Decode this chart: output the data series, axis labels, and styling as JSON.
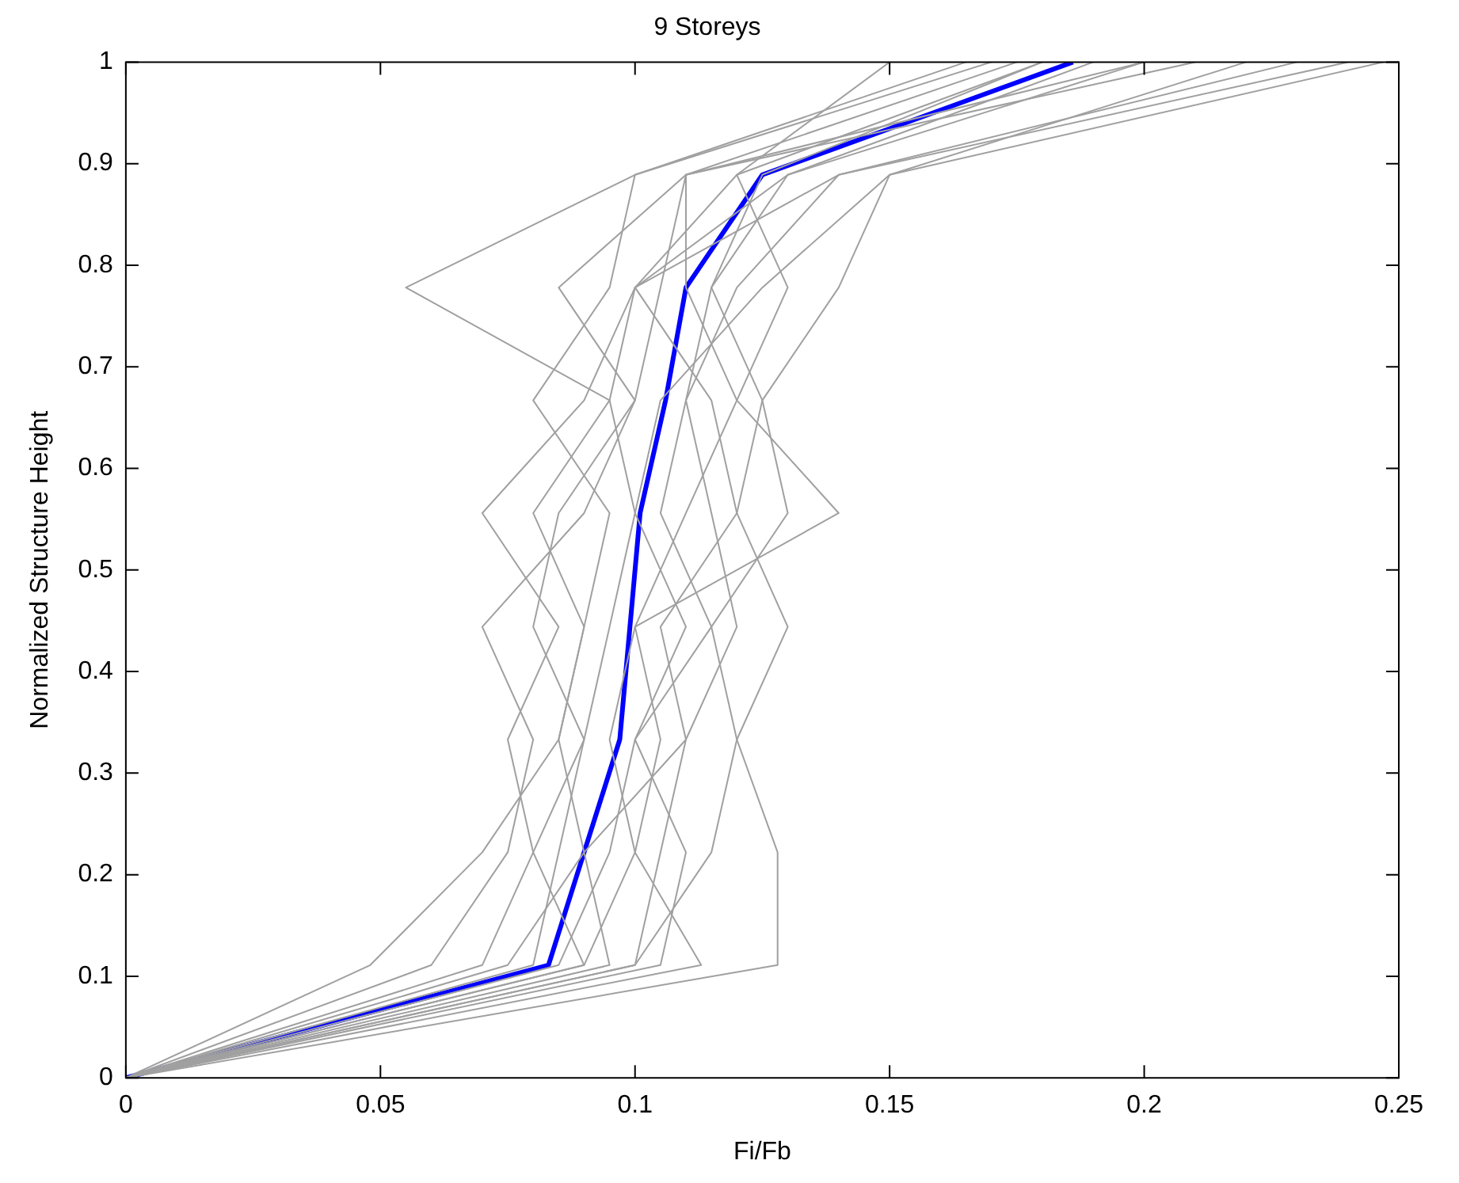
{
  "chart_data": {
    "type": "line",
    "title": "9 Storeys",
    "xlabel": "Fi/Fb",
    "ylabel": "Normalized Structure Height",
    "xlim": [
      0,
      0.25
    ],
    "xticks": [
      0,
      0.05,
      0.1,
      0.15,
      0.2,
      0.25
    ],
    "ylim": [
      0,
      1
    ],
    "yticks": [
      0,
      0.1,
      0.2,
      0.3,
      0.4,
      0.5,
      0.6,
      0.7,
      0.8,
      0.9,
      1
    ],
    "grid": false,
    "legend": false,
    "marker": "none",
    "line_style": "solid",
    "series": [
      {
        "color": "#a0a0a0",
        "x": [
          0,
          0.048,
          0.07,
          0.085,
          0.09,
          0.08,
          0.095,
          0.055,
          0.1,
          0.17
        ],
        "values": [
          0,
          0.111,
          0.222,
          0.333,
          0.444,
          0.556,
          0.667,
          0.778,
          0.889,
          1
        ]
      },
      {
        "color": "#a0a0a0",
        "x": [
          0,
          0.128,
          0.128,
          0.12,
          0.115,
          0.13,
          0.125,
          0.14,
          0.15,
          0.247
        ],
        "values": [
          0,
          0.111,
          0.222,
          0.333,
          0.444,
          0.556,
          0.667,
          0.778,
          0.889,
          1
        ]
      },
      {
        "color": "#a0a0a0",
        "x": [
          0,
          0.06,
          0.075,
          0.08,
          0.07,
          0.09,
          0.1,
          0.085,
          0.11,
          0.2
        ],
        "values": [
          0,
          0.111,
          0.222,
          0.333,
          0.444,
          0.556,
          0.667,
          0.778,
          0.889,
          1
        ]
      },
      {
        "color": "#a0a0a0",
        "x": [
          0,
          0.1,
          0.105,
          0.11,
          0.12,
          0.115,
          0.11,
          0.12,
          0.14,
          0.23
        ],
        "values": [
          0,
          0.111,
          0.222,
          0.333,
          0.444,
          0.556,
          0.667,
          0.778,
          0.889,
          1
        ]
      },
      {
        "color": "#a0a0a0",
        "x": [
          0,
          0.08,
          0.085,
          0.09,
          0.095,
          0.1,
          0.095,
          0.1,
          0.12,
          0.15
        ],
        "values": [
          0,
          0.111,
          0.222,
          0.333,
          0.444,
          0.556,
          0.667,
          0.778,
          0.889,
          1
        ]
      },
      {
        "color": "#a0a0a0",
        "x": [
          0,
          0.09,
          0.1,
          0.105,
          0.1,
          0.11,
          0.12,
          0.13,
          0.12,
          0.18
        ],
        "values": [
          0,
          0.111,
          0.222,
          0.333,
          0.444,
          0.556,
          0.667,
          0.778,
          0.889,
          1
        ]
      },
      {
        "color": "#a0a0a0",
        "x": [
          0,
          0.07,
          0.08,
          0.075,
          0.085,
          0.07,
          0.09,
          0.1,
          0.13,
          0.19
        ],
        "values": [
          0,
          0.111,
          0.222,
          0.333,
          0.444,
          0.556,
          0.667,
          0.778,
          0.889,
          1
        ]
      },
      {
        "color": "#a0a0a0",
        "x": [
          0,
          0.113,
          0.1,
          0.095,
          0.1,
          0.14,
          0.12,
          0.11,
          0.11,
          0.21
        ],
        "values": [
          0,
          0.111,
          0.222,
          0.333,
          0.444,
          0.556,
          0.667,
          0.778,
          0.889,
          1
        ]
      },
      {
        "color": "#a0a0a0",
        "x": [
          0,
          0.085,
          0.095,
          0.1,
          0.11,
          0.1,
          0.105,
          0.125,
          0.15,
          0.22
        ],
        "values": [
          0,
          0.111,
          0.222,
          0.333,
          0.444,
          0.556,
          0.667,
          0.778,
          0.889,
          1
        ]
      },
      {
        "color": "#a0a0a0",
        "x": [
          0,
          0.095,
          0.09,
          0.085,
          0.09,
          0.095,
          0.08,
          0.095,
          0.1,
          0.165
        ],
        "values": [
          0,
          0.111,
          0.222,
          0.333,
          0.444,
          0.556,
          0.667,
          0.778,
          0.889,
          1
        ]
      },
      {
        "color": "#a0a0a0",
        "x": [
          0,
          0.105,
          0.11,
          0.1,
          0.115,
          0.105,
          0.11,
          0.115,
          0.125,
          0.18
        ],
        "values": [
          0,
          0.111,
          0.222,
          0.333,
          0.444,
          0.556,
          0.667,
          0.778,
          0.889,
          1
        ]
      },
      {
        "color": "#a0a0a0",
        "x": [
          0,
          0.075,
          0.09,
          0.11,
          0.105,
          0.12,
          0.115,
          0.1,
          0.14,
          0.24
        ],
        "values": [
          0,
          0.111,
          0.222,
          0.333,
          0.444,
          0.556,
          0.667,
          0.778,
          0.889,
          1
        ]
      },
      {
        "color": "#a0a0a0",
        "x": [
          0,
          0.09,
          0.08,
          0.09,
          0.08,
          0.085,
          0.1,
          0.105,
          0.11,
          0.175
        ],
        "values": [
          0,
          0.111,
          0.222,
          0.333,
          0.444,
          0.556,
          0.667,
          0.778,
          0.889,
          1
        ]
      },
      {
        "color": "#a0a0a0",
        "x": [
          0,
          0.1,
          0.115,
          0.12,
          0.13,
          0.12,
          0.125,
          0.115,
          0.13,
          0.2
        ],
        "values": [
          0,
          0.111,
          0.222,
          0.333,
          0.444,
          0.556,
          0.667,
          0.778,
          0.889,
          1
        ]
      },
      {
        "color": "#0000ff",
        "x": [
          0,
          0.083,
          0.09,
          0.097,
          0.099,
          0.101,
          0.106,
          0.11,
          0.125,
          0.186
        ],
        "values": [
          0,
          0.111,
          0.222,
          0.333,
          0.444,
          0.556,
          0.667,
          0.778,
          0.889,
          1
        ]
      }
    ]
  }
}
